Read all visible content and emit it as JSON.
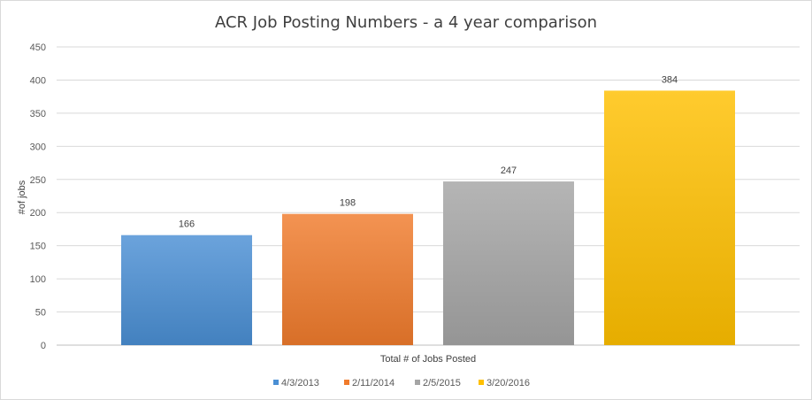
{
  "chart_data": {
    "type": "bar",
    "title": "ACR Job Posting Numbers - a 4 year comparison",
    "xlabel": "Total # of Jobs Posted",
    "ylabel": "#of jobs",
    "categories": [
      "Total # of Jobs Posted"
    ],
    "series": [
      {
        "name": "4/3/2013",
        "values": [
          166
        ],
        "color": "#4a8fd4"
      },
      {
        "name": "2/11/2014",
        "values": [
          198
        ],
        "color": "#f07b2c"
      },
      {
        "name": "2/5/2015",
        "values": [
          247
        ],
        "color": "#a5a5a5"
      },
      {
        "name": "3/20/2016",
        "values": [
          384
        ],
        "color": "#ffc000"
      }
    ],
    "ylim": [
      0,
      450
    ],
    "yticks": [
      "0",
      "50",
      "100",
      "150",
      "200",
      "250",
      "300",
      "350",
      "400",
      "450"
    ],
    "grid": true,
    "legend": "bottom"
  }
}
